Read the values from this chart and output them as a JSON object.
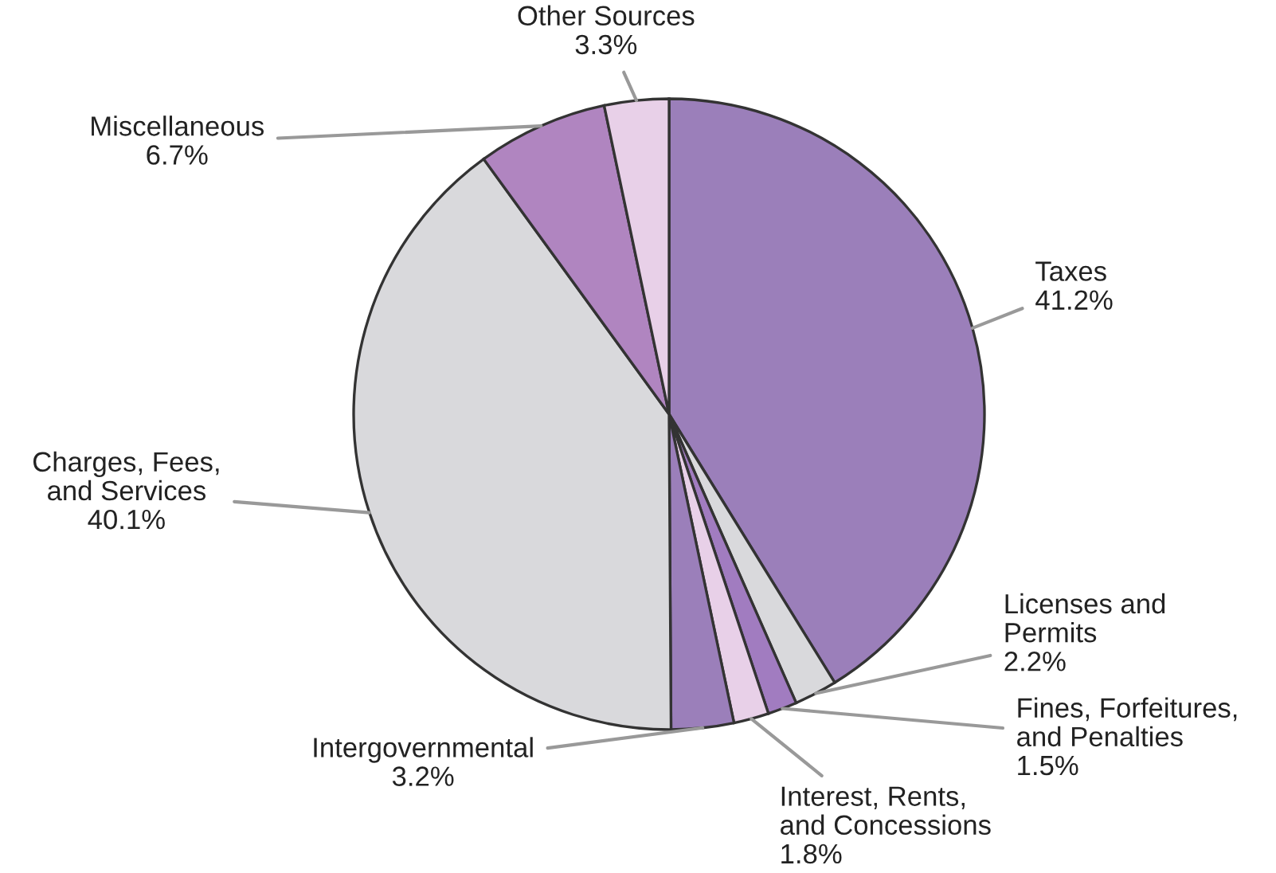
{
  "chart_data": {
    "type": "pie",
    "categories": [
      "Taxes",
      "Licenses and\nPermits",
      "Fines, Forfeitures,\nand Penalties",
      "Interest, Rents,\nand Concessions",
      "Intergovernmental",
      "Charges, Fees,\nand Services",
      "Miscellaneous",
      "Other Sources"
    ],
    "values": [
      41.2,
      2.2,
      1.5,
      1.8,
      3.2,
      40.1,
      6.7,
      3.3
    ],
    "value_labels": [
      "41.2%",
      "2.2%",
      "1.5%",
      "1.8%",
      "3.2%",
      "40.1%",
      "6.7%",
      "3.3%"
    ],
    "colors": [
      "#9b7fba",
      "#d9d9dc",
      "#a17cc0",
      "#e8d0e8",
      "#9b7fba",
      "#d9d9dc",
      "#b085c0",
      "#e8d0e8"
    ]
  }
}
